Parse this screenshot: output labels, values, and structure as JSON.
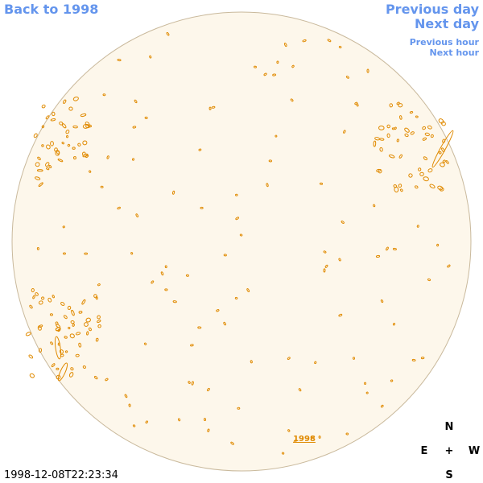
{
  "navigation": {
    "back": "Back to 1998",
    "previous_day": "Previous day",
    "next_day": "Next day",
    "previous_hour": "Previous hour",
    "next_hour": "Next hour"
  },
  "disk": {
    "year_link": "1998"
  },
  "compass": {
    "north": "N",
    "east": "E",
    "center": "+",
    "west": "W",
    "south": "S"
  },
  "timestamp": "1998-12-08T22:23:34"
}
